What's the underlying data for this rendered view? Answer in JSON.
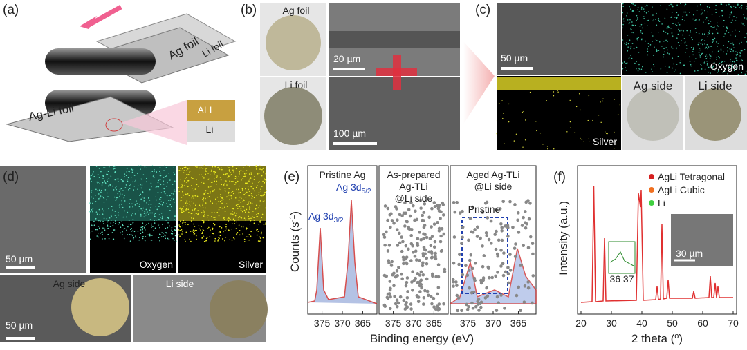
{
  "panels": {
    "a": {
      "label": "(a)",
      "ag_foil": "Ag foil",
      "li_foil": "Li foil",
      "agli_foil": "Ag-Li foil",
      "ali": "ALI",
      "li": "Li"
    },
    "b": {
      "label": "(b)",
      "ag_foil": "Ag foil",
      "li_foil": "Li foil",
      "scale_top": "20 µm",
      "scale_bottom": "100 µm"
    },
    "c": {
      "label": "(c)",
      "scale": "50 µm",
      "oxygen": "Oxygen",
      "silver": "Silver",
      "ag_side": "Ag side",
      "li_side": "Li side"
    },
    "d": {
      "label": "(d)",
      "scale_top": "50 µm",
      "oxygen": "Oxygen",
      "silver": "Silver",
      "ag_side": "Ag side",
      "li_side": "Li side",
      "scale_bottom": "50 µm"
    },
    "e": {
      "label": "(e)",
      "sub1": "Pristine Ag",
      "sub2_line1": "As-prepared",
      "sub2_line2": "Ag-TLi",
      "sub2_line3": "@Li side",
      "sub3_line1": "Aged Ag-TLi",
      "sub3_line2": "@Li side",
      "peak1": "Ag 3d",
      "peak1_sub": "3/2",
      "peak2": "Ag 3d",
      "peak2_sub": "5/2",
      "pristine": "Pristine",
      "ylabel": "Counts (s",
      "ylabel_sup": "-1",
      "ylabel_end": ")",
      "xlabel": "Binding energy (eV)",
      "xticks": [
        "375",
        "370",
        "365"
      ]
    },
    "f": {
      "label": "(f)",
      "legend": [
        "AgLi Tetragonal",
        "AgLi Cubic",
        "Li"
      ],
      "legend_colors": [
        "#d62020",
        "#f07020",
        "#40d040"
      ],
      "ylabel": "Intensity (a.u.)",
      "xlabel": "2 theta (",
      "xlabel_sup": "o",
      "xlabel_end": ")",
      "xticks": [
        "20",
        "30",
        "40",
        "50",
        "60",
        "70"
      ],
      "inset_ticks": "36 37",
      "inset_scale": "30 µm"
    }
  }
}
